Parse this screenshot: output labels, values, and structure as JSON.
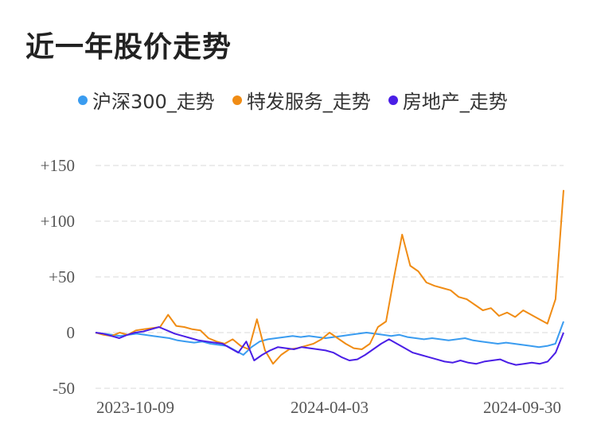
{
  "title": "近一年股价走势",
  "chart_data": {
    "type": "line",
    "x_ticks": [
      "2023-10-09",
      "2024-04-03",
      "2024-09-30"
    ],
    "y_ticks": [
      "+150",
      "+100",
      "+50",
      "0",
      "-50"
    ],
    "ylim": [
      -50,
      150
    ],
    "grid": true,
    "legend_position": "top",
    "series": [
      {
        "name": "沪深300_走势",
        "color": "#3a9cf0",
        "values": [
          0,
          -1,
          -2,
          -3,
          -2,
          -1,
          -2,
          -3,
          -4,
          -5,
          -7,
          -8,
          -9,
          -8,
          -10,
          -11,
          -12,
          -16,
          -20,
          -13,
          -8,
          -6,
          -5,
          -4,
          -3,
          -4,
          -3,
          -4,
          -5,
          -4,
          -3,
          -2,
          -1,
          0,
          -1,
          -2,
          -3,
          -2,
          -4,
          -5,
          -6,
          -5,
          -6,
          -7,
          -6,
          -5,
          -7,
          -8,
          -9,
          -10,
          -9,
          -10,
          -11,
          -12,
          -13,
          -12,
          -10,
          10
        ]
      },
      {
        "name": "特发服务_走势",
        "color": "#f08c14",
        "values": [
          0,
          -2,
          -3,
          0,
          -2,
          2,
          3,
          4,
          5,
          16,
          6,
          5,
          3,
          2,
          -5,
          -8,
          -10,
          -6,
          -12,
          -15,
          12,
          -16,
          -28,
          -20,
          -15,
          -14,
          -12,
          -10,
          -6,
          0,
          -5,
          -10,
          -14,
          -15,
          -10,
          5,
          10,
          50,
          88,
          60,
          55,
          45,
          42,
          40,
          38,
          32,
          30,
          25,
          20,
          22,
          15,
          18,
          14,
          20,
          16,
          12,
          8,
          30,
          128
        ]
      },
      {
        "name": "房地产_走势",
        "color": "#4a1ee6",
        "values": [
          0,
          -1,
          -3,
          -5,
          -2,
          0,
          1,
          3,
          5,
          2,
          -1,
          -3,
          -5,
          -7,
          -8,
          -9,
          -10,
          -14,
          -18,
          -8,
          -25,
          -20,
          -16,
          -13,
          -14,
          -15,
          -13,
          -14,
          -15,
          -16,
          -18,
          -22,
          -25,
          -24,
          -20,
          -15,
          -10,
          -6,
          -10,
          -14,
          -18,
          -20,
          -22,
          -24,
          -26,
          -27,
          -25,
          -27,
          -28,
          -26,
          -25,
          -24,
          -27,
          -29,
          -28,
          -27,
          -28,
          -26,
          -18,
          0
        ]
      }
    ]
  }
}
